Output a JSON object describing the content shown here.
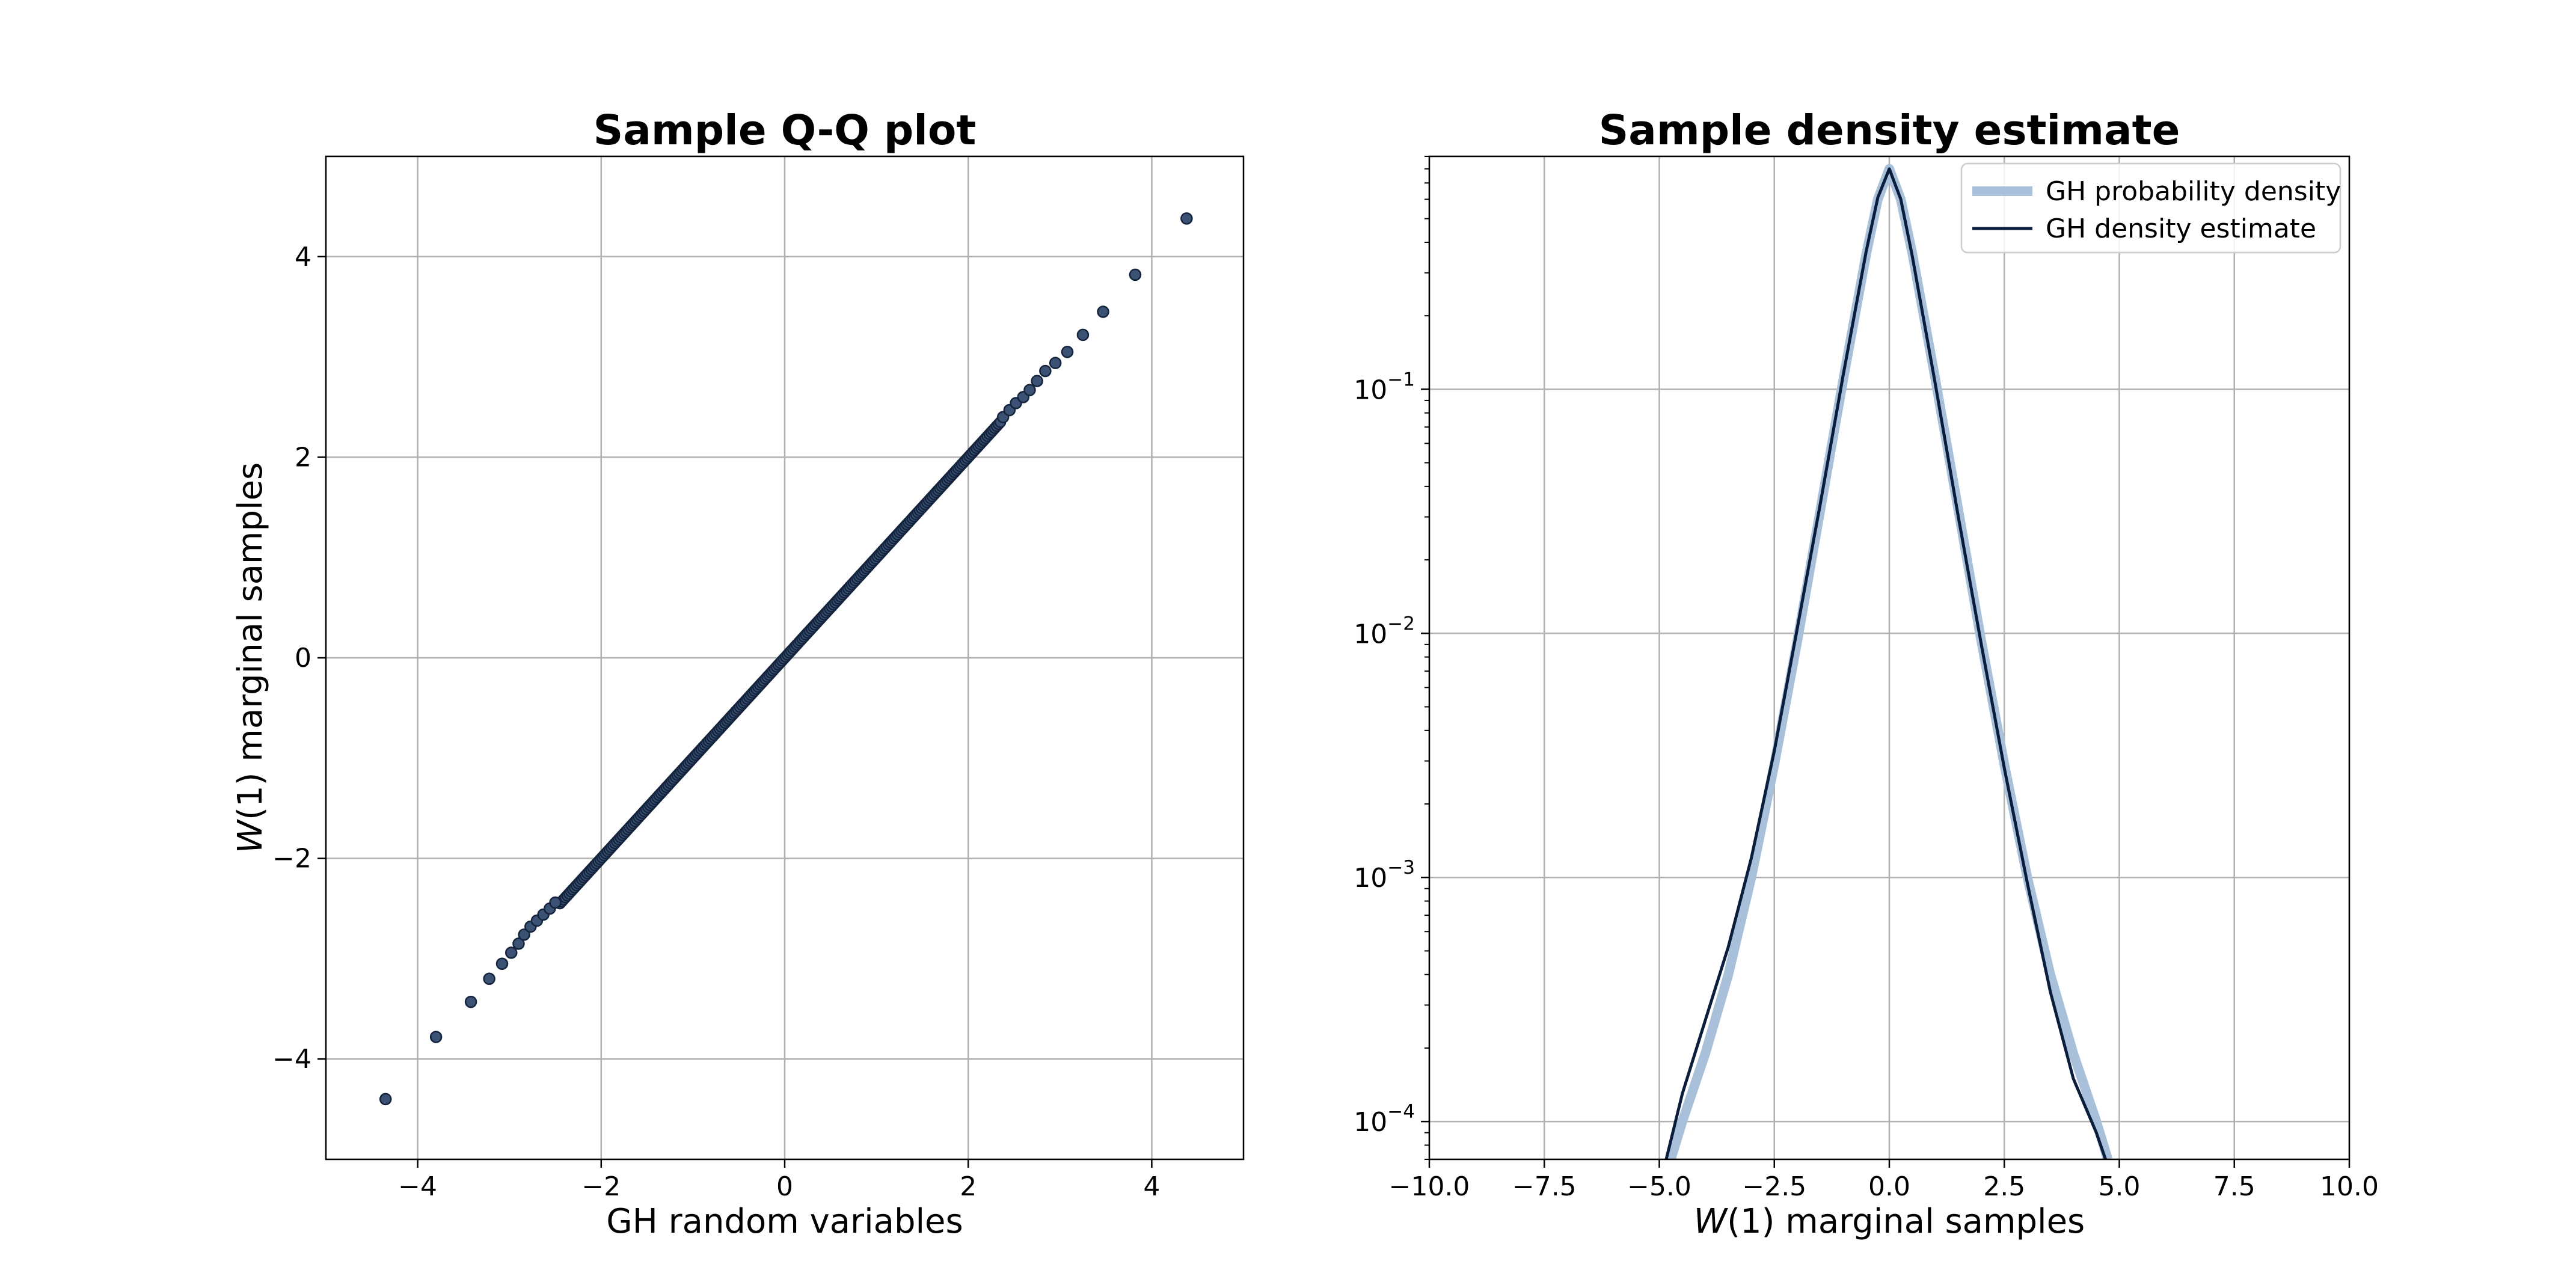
{
  "chart_data": [
    {
      "type": "scatter",
      "title": "Sample Q-Q plot",
      "xlabel": "GH random variables",
      "ylabel_prefix": "W",
      "ylabel_suffix": "(1) marginal samples",
      "xlim": [
        -5,
        5
      ],
      "ylim": [
        -5,
        5
      ],
      "xticks": [
        -4,
        -2,
        0,
        2,
        4
      ],
      "yticks": [
        -4,
        -2,
        0,
        2,
        4
      ],
      "xtick_labels": [
        "−4",
        "−2",
        "0",
        "2",
        "4"
      ],
      "ytick_labels": [
        "−4",
        "−2",
        "0",
        "2",
        "4"
      ],
      "grid": true,
      "colors": {
        "marker_fill": "#3b5275",
        "marker_edge": "#14243d",
        "grid": "#b0b0b0"
      },
      "outlier_points": [
        [
          -4.35,
          -4.4
        ],
        [
          -3.8,
          -3.78
        ],
        [
          -3.42,
          -3.43
        ],
        [
          -3.22,
          -3.2
        ],
        [
          -3.08,
          -3.05
        ],
        [
          -2.98,
          -2.94
        ],
        [
          -2.9,
          -2.85
        ],
        [
          -2.84,
          -2.76
        ],
        [
          -2.77,
          -2.68
        ],
        [
          -2.7,
          -2.62
        ],
        [
          -2.63,
          -2.56
        ],
        [
          -2.56,
          -2.5
        ],
        [
          -2.5,
          -2.44
        ],
        [
          2.38,
          2.4
        ],
        [
          2.45,
          2.47
        ],
        [
          2.52,
          2.54
        ],
        [
          2.6,
          2.6
        ],
        [
          2.67,
          2.67
        ],
        [
          2.75,
          2.76
        ],
        [
          2.84,
          2.86
        ],
        [
          2.95,
          2.94
        ],
        [
          3.08,
          3.05
        ],
        [
          3.25,
          3.22
        ],
        [
          3.47,
          3.45
        ],
        [
          3.82,
          3.82
        ],
        [
          4.38,
          4.38
        ]
      ],
      "dense_segment": {
        "x_range": [
          -2.45,
          2.35
        ],
        "slope": 1.0,
        "intercept": 0.0
      }
    },
    {
      "type": "line",
      "title": "Sample density estimate",
      "xlabel_prefix": "W",
      "xlabel_suffix": "(1) marginal samples",
      "ylabel": "",
      "xlim": [
        -10,
        10
      ],
      "ylim": [
        7e-05,
        0.9
      ],
      "yscale": "log",
      "xticks": [
        -10,
        -7.5,
        -5,
        -2.5,
        0,
        2.5,
        5,
        7.5,
        10
      ],
      "xtick_labels": [
        "−10.0",
        "−7.5",
        "−5.0",
        "−2.5",
        "0.0",
        "2.5",
        "5.0",
        "7.5",
        "10.0"
      ],
      "yticks": [
        0.0001,
        0.001,
        0.01,
        0.1
      ],
      "ytick_mantissa": "10",
      "ytick_exponents": [
        "−4",
        "−3",
        "−2",
        "−1"
      ],
      "grid": true,
      "legend_placement": "upper right",
      "series": [
        {
          "name": "GH probability density",
          "color": "#a8c0d9",
          "x": [
            -4.75,
            -4.5,
            -4.0,
            -3.5,
            -3.0,
            -2.5,
            -2.0,
            -1.5,
            -1.0,
            -0.5,
            -0.25,
            0.0,
            0.25,
            0.5,
            1.0,
            1.5,
            2.0,
            2.5,
            3.0,
            3.5,
            4.0,
            4.5,
            4.75
          ],
          "y": [
            7e-05,
            0.0001,
            0.00019,
            0.0004,
            0.001,
            0.0029,
            0.0093,
            0.032,
            0.11,
            0.36,
            0.6,
            0.8,
            0.6,
            0.36,
            0.11,
            0.032,
            0.0093,
            0.0029,
            0.001,
            0.0004,
            0.00019,
            0.0001,
            7e-05
          ]
        },
        {
          "name": "GH density estimate",
          "color": "#0b1d3c",
          "x": [
            -4.85,
            -4.5,
            -4.0,
            -3.5,
            -3.0,
            -2.5,
            -2.0,
            -1.5,
            -1.0,
            -0.5,
            -0.25,
            0.0,
            0.25,
            0.5,
            1.0,
            1.5,
            2.0,
            2.5,
            3.0,
            3.5,
            4.0,
            4.5,
            4.7
          ],
          "y": [
            7e-05,
            0.00013,
            0.00026,
            0.00052,
            0.0012,
            0.0033,
            0.0105,
            0.034,
            0.115,
            0.37,
            0.61,
            0.8,
            0.6,
            0.35,
            0.105,
            0.03,
            0.009,
            0.0028,
            0.00095,
            0.00034,
            0.00015,
            9e-05,
            7e-05
          ]
        }
      ]
    }
  ]
}
